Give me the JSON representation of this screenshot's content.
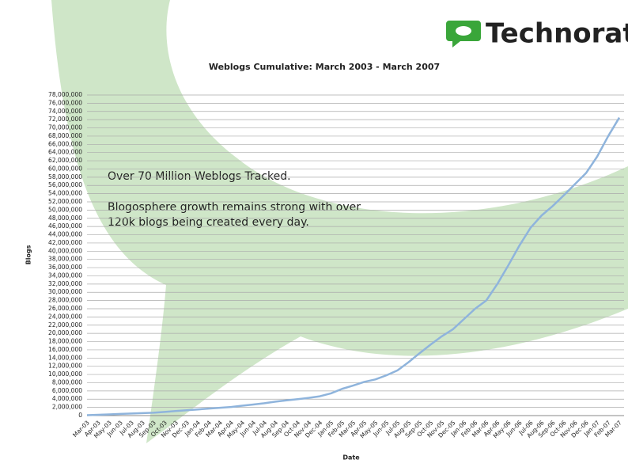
{
  "brand": "Technorati",
  "chart_data": {
    "type": "line",
    "title": "Weblogs Cumulative: March 2003 - March 2007",
    "x_label": "Date",
    "y_label": "Blogs",
    "annotations": [
      "Over 70 Million Weblogs Tracked.",
      "Blogosphere growth remains strong with over",
      "120k blogs being created every day."
    ],
    "categories": [
      "Mar-03",
      "Apr-03",
      "May-03",
      "Jun-03",
      "Jul-03",
      "Aug-03",
      "Sep-03",
      "Oct-03",
      "Nov-03",
      "Dec-03",
      "Jan-04",
      "Feb-04",
      "Mar-04",
      "Apr-04",
      "May-04",
      "Jun-04",
      "Jul-04",
      "Aug-04",
      "Sep-04",
      "Oct-04",
      "Nov-04",
      "Dec-04",
      "Jan-05",
      "Feb-05",
      "Mar-05",
      "Apr-05",
      "May-05",
      "Jun-05",
      "Jul-05",
      "Aug-05",
      "Sep-05",
      "Oct-05",
      "Nov-05",
      "Dec-05",
      "Jan-06",
      "Feb-06",
      "Mar-06",
      "Apr-06",
      "May-06",
      "Jun-06",
      "Jul-06",
      "Aug-06",
      "Sep-06",
      "Oct-06",
      "Nov-06",
      "Dec-06",
      "Jan-07",
      "Feb-07",
      "Mar-07"
    ],
    "values": [
      100000,
      200000,
      300000,
      400000,
      500000,
      600000,
      700000,
      900000,
      1100000,
      1300000,
      1500000,
      1700000,
      1900000,
      2100000,
      2400000,
      2700000,
      3000000,
      3400000,
      3700000,
      4000000,
      4300000,
      4700000,
      5400000,
      6500000,
      7300000,
      8200000,
      8800000,
      9800000,
      11000000,
      13000000,
      15200000,
      17300000,
      19300000,
      21000000,
      23500000,
      26000000,
      28000000,
      32000000,
      36600000,
      41400000,
      45700000,
      48700000,
      51000000,
      53600000,
      56300000,
      59000000,
      63000000,
      68000000,
      72500000
    ],
    "color": "#8fb4dc",
    "ylim": [
      0,
      78000000
    ],
    "yticks": [
      0,
      {
        "value": 2000000,
        "label": "2,000,000"
      },
      {
        "value": 4000000,
        "label": "4,000,000"
      },
      {
        "value": 6000000,
        "label": "6,000,000"
      },
      {
        "value": 8000000,
        "label": "8,000,000"
      },
      {
        "value": 10000000,
        "label": "10,000,000"
      },
      {
        "value": 12000000,
        "label": "12,000,000"
      },
      {
        "value": 14000000,
        "label": "14,000,000"
      },
      {
        "value": 16000000,
        "label": "16,000,000"
      },
      {
        "value": 18000000,
        "label": "18,000,000"
      },
      {
        "value": 20000000,
        "label": "20,000,000"
      },
      {
        "value": 22000000,
        "label": "22,000,000"
      },
      {
        "value": 24000000,
        "label": "24,000,000"
      },
      {
        "value": 26000000,
        "label": "26,000,000"
      },
      {
        "value": 28000000,
        "label": "28,000,000"
      },
      {
        "value": 30000000,
        "label": "30,000,000"
      },
      {
        "value": 32000000,
        "label": "32,000,000"
      },
      {
        "value": 34000000,
        "label": "34,000,000"
      },
      {
        "value": 36000000,
        "label": "36,000,000"
      },
      {
        "value": 38000000,
        "label": "38,000,000"
      },
      {
        "value": 40000000,
        "label": "40,000,000"
      },
      {
        "value": 42000000,
        "label": "42,000,000"
      },
      {
        "value": 44000000,
        "label": "44,000,000"
      },
      {
        "value": 46000000,
        "label": "46,000,000"
      },
      {
        "value": 48000000,
        "label": "48,000,000"
      },
      {
        "value": 50000000,
        "label": "50,000,000"
      },
      {
        "value": 52000000,
        "label": "52,000,000"
      },
      {
        "value": 54000000,
        "label": "54,000,000"
      },
      {
        "value": 56000000,
        "label": "56,000,000"
      },
      {
        "value": 58000000,
        "label": "58,000,000"
      },
      {
        "value": 60000000,
        "label": "60,000,000"
      },
      {
        "value": 62000000,
        "label": "62,000,000"
      },
      {
        "value": 64000000,
        "label": "64,000,000"
      },
      {
        "value": 66000000,
        "label": "66,000,000"
      },
      {
        "value": 68000000,
        "label": "68,000,000"
      },
      {
        "value": 70000000,
        "label": "70,000,000"
      },
      {
        "value": 72000000,
        "label": "72,000,000"
      },
      {
        "value": 74000000,
        "label": "74,000,000"
      },
      {
        "value": 76000000,
        "label": "76,000,000"
      },
      {
        "value": 78000000,
        "label": "78,000,000"
      }
    ],
    "grid": true
  }
}
